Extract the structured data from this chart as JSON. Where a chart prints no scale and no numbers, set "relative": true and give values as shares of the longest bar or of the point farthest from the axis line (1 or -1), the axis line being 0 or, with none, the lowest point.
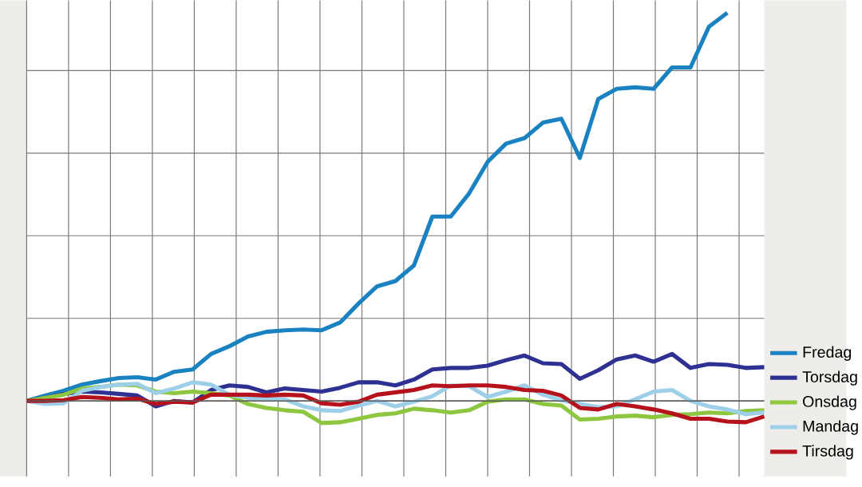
{
  "chart_data": {
    "type": "line",
    "relative": true,
    "grid": true,
    "legend": "bottom right",
    "line_style": "solid",
    "categories": [
      null,
      null,
      null,
      null,
      null,
      null,
      null,
      null,
      null,
      null,
      null,
      null,
      null,
      null,
      null,
      null,
      null,
      null,
      null,
      null,
      null,
      null,
      null,
      null,
      null,
      null,
      null,
      null,
      null,
      null,
      null,
      null,
      null,
      null,
      null,
      null,
      null,
      null,
      null,
      null,
      null
    ],
    "series": [
      {
        "name": "Fredag",
        "color": "#1a82c0",
        "values": [
          0,
          0.014,
          0.026,
          0.042,
          0.051,
          0.059,
          0.061,
          0.055,
          0.075,
          0.081,
          0.121,
          0.141,
          0.166,
          0.178,
          0.182,
          0.184,
          0.182,
          0.202,
          0.251,
          0.295,
          0.309,
          0.349,
          0.475,
          0.475,
          0.535,
          0.616,
          0.663,
          0.677,
          0.717,
          0.727,
          0.626,
          0.778,
          0.804,
          0.808,
          0.804,
          0.859,
          0.859,
          0.964,
          1,
          null,
          null
        ]
      },
      {
        "name": "Torsdag",
        "color": "#2e3192",
        "values": [
          0,
          0.008,
          0.018,
          0.024,
          0.022,
          0.018,
          0.014,
          -0.014,
          0,
          -0.004,
          0.028,
          0.04,
          0.036,
          0.022,
          0.032,
          0.028,
          0.024,
          0.034,
          0.048,
          0.048,
          0.04,
          0.055,
          0.081,
          0.085,
          0.085,
          0.091,
          0.105,
          0.117,
          0.097,
          0.095,
          0.057,
          0.079,
          0.107,
          0.117,
          0.101,
          0.121,
          0.085,
          0.095,
          0.093,
          0.085,
          0.087
        ]
      },
      {
        "name": "Onsdag",
        "color": "#8dc63f",
        "values": [
          0,
          0.008,
          0.016,
          0.032,
          0.036,
          0.042,
          0.04,
          0.024,
          0.02,
          0.024,
          0.02,
          0.014,
          -0.008,
          -0.018,
          -0.024,
          -0.028,
          -0.057,
          -0.055,
          -0.046,
          -0.036,
          -0.032,
          -0.02,
          -0.024,
          -0.03,
          -0.024,
          -0.002,
          0.004,
          0.004,
          -0.008,
          -0.012,
          -0.048,
          -0.046,
          -0.04,
          -0.038,
          -0.042,
          -0.036,
          -0.034,
          -0.03,
          -0.032,
          -0.026,
          -0.024
        ]
      },
      {
        "name": "Mandag",
        "color": "#9ecfe8",
        "values": [
          0,
          -0.008,
          -0.006,
          0.026,
          0.036,
          0.042,
          0.044,
          0.02,
          0.032,
          0.048,
          0.042,
          0.016,
          0.008,
          0.006,
          0.004,
          -0.014,
          -0.024,
          -0.026,
          -0.012,
          0,
          -0.014,
          -0.002,
          0.012,
          0.04,
          0.038,
          0.01,
          0.024,
          0.04,
          0.016,
          0.002,
          -0.008,
          -0.016,
          -0.014,
          0.004,
          0.024,
          0.028,
          0,
          -0.014,
          -0.022,
          -0.034,
          -0.03
        ]
      },
      {
        "name": "Tirsdag",
        "color": "#b5121b",
        "values": [
          0,
          0,
          0.002,
          0.01,
          0.008,
          0.004,
          0.006,
          -0.008,
          -0.002,
          -0.004,
          0.016,
          0.016,
          0.016,
          0.014,
          0.016,
          0.014,
          -0.006,
          -0.01,
          -0.002,
          0.016,
          0.022,
          0.028,
          0.04,
          0.038,
          0.04,
          0.04,
          0.036,
          0.028,
          0.026,
          0.014,
          -0.018,
          -0.022,
          -0.008,
          -0.014,
          -0.022,
          -0.032,
          -0.046,
          -0.046,
          -0.053,
          -0.055,
          -0.04
        ]
      }
    ]
  }
}
